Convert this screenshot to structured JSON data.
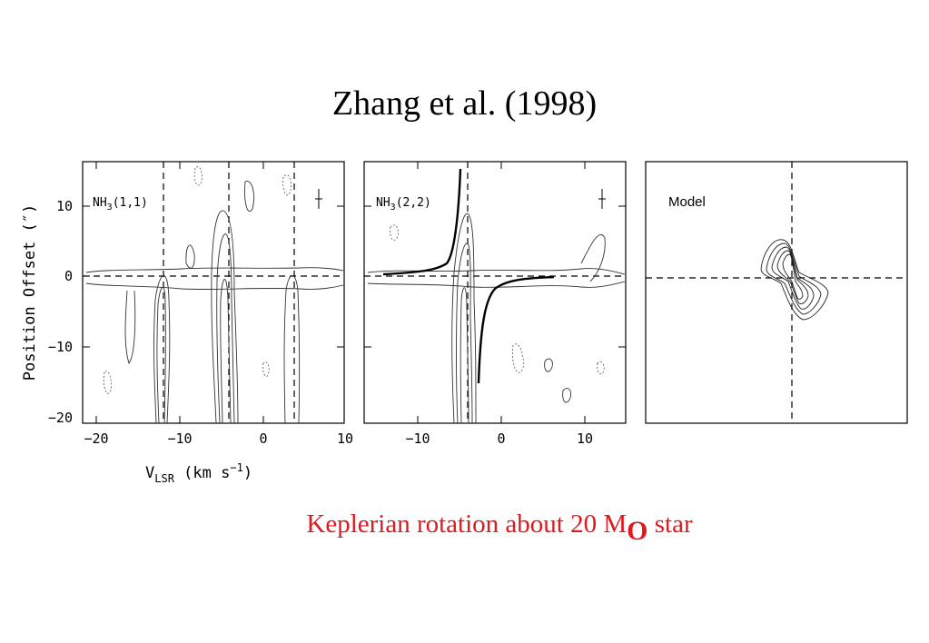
{
  "slide": {
    "title": "Zhang et al. (1998)",
    "caption_main": "Keplerian rotation about 20 M",
    "caption_sub": "O",
    "caption_tail": " star"
  },
  "figure": {
    "ylabel": "Position Offset (″)",
    "xlabel_main": "V",
    "xlabel_sub": "LSR",
    "xlabel_units": " (km s",
    "xlabel_sup": "−1",
    "xlabel_close": ")",
    "panels": [
      {
        "label_main": "NH",
        "label_sub": "3",
        "label_tail": "(1,1)",
        "xticks": [
          "−20",
          "−10",
          "0",
          "10"
        ],
        "yticks": [
          "10",
          "0",
          "−10",
          "−20"
        ],
        "xlim": [
          -20,
          10
        ],
        "ylim": [
          -20,
          15
        ]
      },
      {
        "label_main": "NH",
        "label_sub": "3",
        "label_tail": "(2,2)",
        "xticks": [
          "−10",
          "0",
          "10"
        ],
        "xlim": [
          -16,
          15
        ],
        "ylim": [
          -20,
          15
        ]
      },
      {
        "label_main": "Model",
        "label_sub": "",
        "label_tail": ""
      }
    ]
  }
}
